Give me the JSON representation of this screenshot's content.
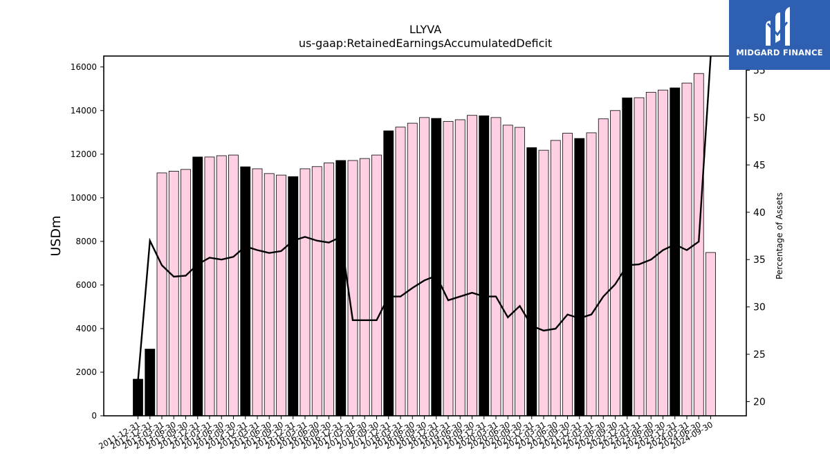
{
  "brand": {
    "name": "MIDGARD FINANCE",
    "logo_icon": "midgard-m-logo-icon",
    "bg_color": "#2f5fb0"
  },
  "chart_data": {
    "type": "bar",
    "title": "LLYVA",
    "subtitle": "us-gaap:RetainedEarningsAccumulatedDeficit",
    "ylabel": "USDm",
    "y2label": "Percentage of Assets",
    "ylim": [
      0,
      16500
    ],
    "y2lim": [
      18.5,
      56.5
    ],
    "yticks": [
      0,
      2000,
      4000,
      6000,
      8000,
      10000,
      12000,
      14000,
      16000
    ],
    "y2ticks": [
      20,
      25,
      30,
      35,
      40,
      45,
      50,
      55
    ],
    "grid": false,
    "colors": {
      "annual": "#000000",
      "quarterly": "#ffd0e4",
      "edge": "#000000",
      "line": "#000000"
    },
    "categories": [
      "2011-12-31",
      "2012-12-31",
      "2013-03-31",
      "2013-06-30",
      "2013-09-30",
      "2013-12-31",
      "2014-03-31",
      "2014-06-30",
      "2014-09-30",
      "2014-12-31",
      "2015-03-31",
      "2015-06-30",
      "2015-09-30",
      "2015-12-31",
      "2016-03-31",
      "2016-06-30",
      "2016-09-30",
      "2016-12-31",
      "2017-03-31",
      "2017-06-30",
      "2017-09-30",
      "2017-12-31",
      "2018-03-31",
      "2018-06-30",
      "2018-09-30",
      "2018-12-31",
      "2019-03-31",
      "2019-06-30",
      "2019-09-30",
      "2019-12-31",
      "2020-03-31",
      "2020-06-30",
      "2020-09-30",
      "2020-12-31",
      "2021-03-31",
      "2021-06-30",
      "2021-09-30",
      "2021-12-31",
      "2022-03-31",
      "2022-06-30",
      "2022-09-30",
      "2022-12-31",
      "2023-03-31",
      "2023-06-30",
      "2023-09-30",
      "2023-12-31",
      "2024-03-31",
      "2024-06-30",
      "2024-09-30"
    ],
    "xtick_labels": [
      "2011-12-31",
      "2012-12-31",
      "2013-03-31",
      "2013-06-30",
      "2013-09-30",
      "2013-12-31",
      "2014-03-31",
      "2014-06-30",
      "2014-09-30",
      "2014-12-31",
      "2015-03-31",
      "2015-06-30",
      "2015-09-30",
      "2015-12-31",
      "2016-03-31",
      "2016-06-30",
      "2016-09-30",
      "2016-12-31",
      "2017-03-31",
      "2017-06-30",
      "2017-09-30",
      "2017-12-31",
      "2018-03-31",
      "2018-06-30",
      "2018-09-30",
      "2018-12-31",
      "2019-03-31",
      "2019-06-30",
      "2019-09-30",
      "2019-12-31",
      "2020-03-31",
      "2020-06-30",
      "2020-09-30",
      "2020-12-31",
      "2021-03-31",
      "2021-06-30",
      "2021-09-30",
      "2021-12-31",
      "2022-03-31",
      "2022-06-30",
      "2022-09-30",
      "2022-12-31",
      "2023-03-31",
      "2023-06-30",
      "2023-09-30",
      "2023-12-31",
      "2024-03-31",
      "2024-06-30",
      "2024-09-30"
    ],
    "annual": [
      true,
      true,
      false,
      false,
      false,
      true,
      false,
      false,
      false,
      true,
      false,
      false,
      false,
      true,
      false,
      false,
      false,
      true,
      false,
      false,
      false,
      true,
      false,
      false,
      false,
      true,
      false,
      false,
      false,
      true,
      false,
      false,
      false,
      true,
      false,
      false,
      false,
      true,
      false,
      false,
      false,
      true,
      false,
      false,
      false,
      true,
      false,
      false,
      false
    ],
    "series": [
      {
        "type": "bar",
        "values": [
          1680,
          3060,
          11140,
          11220,
          11300,
          11870,
          11870,
          11930,
          11960,
          11420,
          11330,
          11110,
          11040,
          10970,
          11330,
          11430,
          11600,
          11710,
          11710,
          11800,
          11960,
          13070,
          13240,
          13420,
          13680,
          13640,
          13500,
          13580,
          13780,
          13760,
          13680,
          13330,
          13230,
          12300,
          12180,
          12630,
          12960,
          12720,
          12980,
          13620,
          14000,
          14580,
          14590,
          14840,
          14940,
          15040,
          15260,
          15700,
          7490
        ]
      },
      {
        "type": "line",
        "axis": "right",
        "values": [
          22.2,
          37.0,
          34.4,
          33.2,
          33.3,
          34.5,
          35.2,
          35.0,
          35.3,
          36.4,
          36.0,
          35.7,
          35.9,
          37.0,
          37.4,
          37.0,
          36.8,
          37.4,
          28.6,
          28.6,
          28.6,
          31.1,
          31.1,
          32.0,
          32.8,
          33.3,
          30.7,
          31.1,
          31.5,
          31.1,
          31.1,
          28.9,
          30.1,
          28.0,
          27.5,
          27.7,
          29.2,
          28.8,
          29.2,
          31.1,
          32.4,
          34.4,
          34.5,
          35.0,
          36.0,
          36.6,
          36.0,
          36.9,
          56.5
        ]
      }
    ]
  }
}
